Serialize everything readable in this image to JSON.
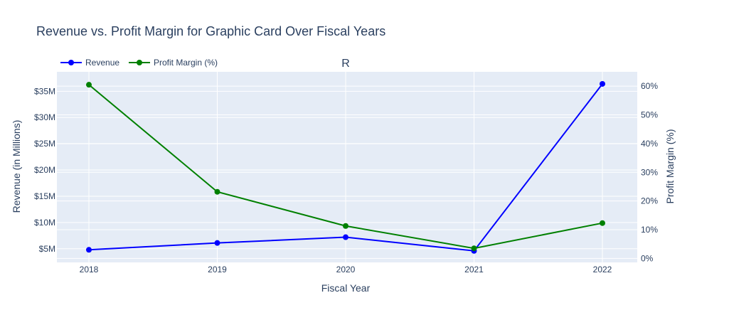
{
  "chart_data": {
    "type": "line",
    "title": "Revenue vs. Profit Margin for Graphic Card Over Fiscal Years",
    "subtitle": "R",
    "xlabel": "Fiscal Year",
    "ylabel": "Revenue (in Millions)",
    "y2label": "Profit Margin (%)",
    "x": [
      "2018",
      "2019",
      "2020",
      "2021",
      "2022"
    ],
    "series": [
      {
        "name": "Revenue",
        "axis": "y",
        "color": "#0000ff",
        "values": [
          4.8,
          6.1,
          7.2,
          4.6,
          36.4
        ]
      },
      {
        "name": "Profit Margin (%)",
        "axis": "y2",
        "color": "#008000",
        "values": [
          60.5,
          23.2,
          11.3,
          3.5,
          12.3
        ]
      }
    ],
    "yticks": [
      {
        "value": 5,
        "label": "$5M"
      },
      {
        "value": 10,
        "label": "$10M"
      },
      {
        "value": 15,
        "label": "$15M"
      },
      {
        "value": 20,
        "label": "$20M"
      },
      {
        "value": 25,
        "label": "$25M"
      },
      {
        "value": 30,
        "label": "$30M"
      },
      {
        "value": 35,
        "label": "$35M"
      }
    ],
    "y2ticks": [
      {
        "value": 0,
        "label": "0%"
      },
      {
        "value": 10,
        "label": "10%"
      },
      {
        "value": 20,
        "label": "20%"
      },
      {
        "value": 30,
        "label": "30%"
      },
      {
        "value": 40,
        "label": "40%"
      },
      {
        "value": 50,
        "label": "50%"
      },
      {
        "value": 60,
        "label": "60%"
      }
    ],
    "ylim": [
      2.4,
      38.7
    ],
    "y2lim": [
      -1.4,
      65
    ],
    "grid": true,
    "legend_position": "top-left",
    "plot_background": "#e5ecf6"
  }
}
